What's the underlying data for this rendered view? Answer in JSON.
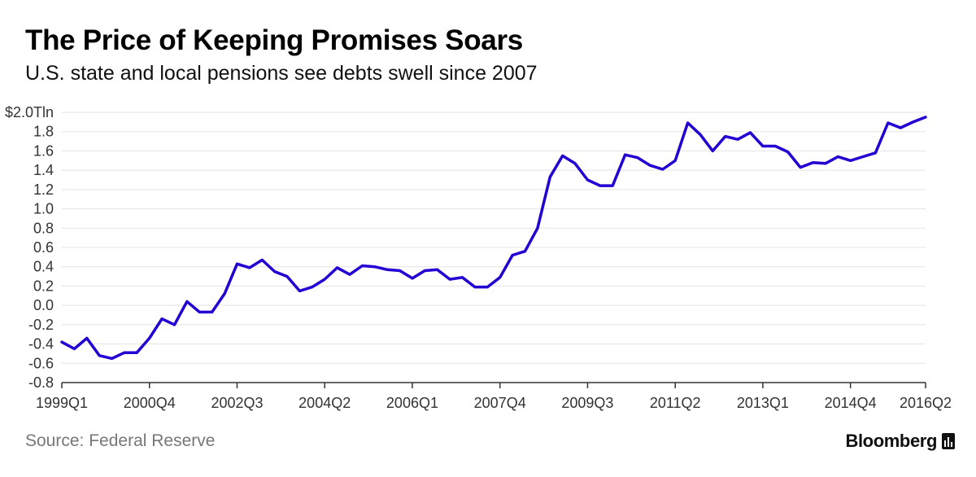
{
  "header": {
    "title": "The Price of Keeping Promises Soars",
    "subtitle": "U.S. state and local pensions see debts swell since 2007"
  },
  "footer": {
    "source": "Source: Federal Reserve",
    "brand": "Bloomberg"
  },
  "colors": {
    "line": "#2200D4",
    "grid": "#e3e3e3",
    "axis": "#333333",
    "text": "#333333"
  },
  "chart_data": {
    "type": "line",
    "ylim": [
      -0.8,
      2.0
    ],
    "y_ticks": [
      2.0,
      1.8,
      1.6,
      1.4,
      1.2,
      1.0,
      0.8,
      0.6,
      0.4,
      0.2,
      0.0,
      -0.2,
      -0.4,
      -0.6,
      -0.8
    ],
    "y_tick_labels": [
      "$2.0Tln",
      "1.8",
      "1.6",
      "1.4",
      "1.2",
      "1.0",
      "0.8",
      "0.6",
      "0.4",
      "0.2",
      "0.0",
      "-0.2",
      "-0.4",
      "-0.6",
      "-0.8"
    ],
    "x_tick_labels": [
      "1999Q1",
      "2000Q4",
      "2002Q3",
      "2004Q2",
      "2006Q1",
      "2007Q4",
      "2009Q3",
      "2011Q2",
      "2013Q1",
      "2014Q4",
      "2016Q2"
    ],
    "x_tick_index": [
      0,
      7,
      14,
      21,
      28,
      35,
      42,
      49,
      56,
      63,
      69
    ],
    "grid": true,
    "x": [
      "1999Q1",
      "1999Q2",
      "1999Q3",
      "1999Q4",
      "2000Q1",
      "2000Q2",
      "2000Q3",
      "2000Q4",
      "2001Q1",
      "2001Q2",
      "2001Q3",
      "2001Q4",
      "2002Q1",
      "2002Q2",
      "2002Q3",
      "2002Q4",
      "2003Q1",
      "2003Q2",
      "2003Q3",
      "2003Q4",
      "2004Q1",
      "2004Q2",
      "2004Q3",
      "2004Q4",
      "2005Q1",
      "2005Q2",
      "2005Q3",
      "2005Q4",
      "2006Q1",
      "2006Q2",
      "2006Q3",
      "2006Q4",
      "2007Q1",
      "2007Q2",
      "2007Q3",
      "2007Q4",
      "2008Q1",
      "2008Q2",
      "2008Q3",
      "2008Q4",
      "2009Q1",
      "2009Q2",
      "2009Q3",
      "2009Q4",
      "2010Q1",
      "2010Q2",
      "2010Q3",
      "2010Q4",
      "2011Q1",
      "2011Q2",
      "2011Q3",
      "2011Q4",
      "2012Q1",
      "2012Q2",
      "2012Q3",
      "2012Q4",
      "2013Q1",
      "2013Q2",
      "2013Q3",
      "2013Q4",
      "2014Q1",
      "2014Q2",
      "2014Q3",
      "2014Q4",
      "2015Q1",
      "2015Q2",
      "2015Q3",
      "2015Q4",
      "2016Q1",
      "2016Q2"
    ],
    "series": [
      {
        "values": [
          -0.38,
          -0.45,
          -0.34,
          -0.52,
          -0.55,
          -0.49,
          -0.49,
          -0.34,
          -0.14,
          -0.2,
          0.04,
          -0.07,
          -0.07,
          0.12,
          0.43,
          0.39,
          0.47,
          0.35,
          0.3,
          0.15,
          0.19,
          0.27,
          0.39,
          0.32,
          0.41,
          0.4,
          0.37,
          0.36,
          0.28,
          0.36,
          0.37,
          0.27,
          0.29,
          0.19,
          0.19,
          0.29,
          0.52,
          0.56,
          0.8,
          1.33,
          1.55,
          1.47,
          1.3,
          1.24,
          1.24,
          1.56,
          1.53,
          1.45,
          1.41,
          1.5,
          1.89,
          1.77,
          1.6,
          1.75,
          1.72,
          1.79,
          1.65,
          1.65,
          1.59,
          1.43,
          1.48,
          1.47,
          1.54,
          1.5,
          1.54,
          1.58,
          1.89,
          1.84,
          1.9,
          1.95
        ]
      }
    ]
  }
}
